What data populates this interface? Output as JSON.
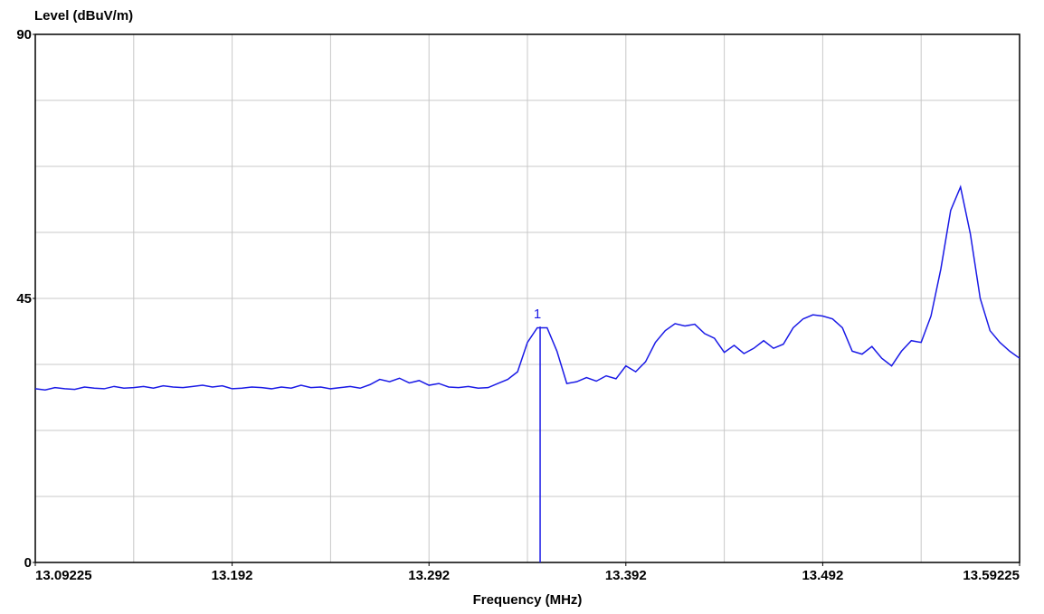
{
  "chart_data": {
    "type": "line",
    "y_label": "Level (dBuV/m)",
    "x_label": "Frequency (MHz)",
    "xlim": [
      13.09225,
      13.59225
    ],
    "ylim": [
      0,
      90
    ],
    "xticks": [
      13.09225,
      {
        "value": 13.19225,
        "label": "13.192"
      },
      {
        "value": 13.29225,
        "label": "13.292"
      },
      {
        "value": 13.39225,
        "label": "13.392"
      },
      {
        "value": 13.49225,
        "label": "13.492"
      },
      13.59225
    ],
    "yticks": [
      0,
      45,
      90
    ],
    "xgrid": [
      13.14225,
      13.19225,
      13.24225,
      13.29225,
      13.34225,
      13.39225,
      13.44225,
      13.49225,
      13.54225
    ],
    "ygrid": [
      11.25,
      22.5,
      33.75,
      45,
      56.25,
      67.5,
      78.75
    ],
    "grid": true,
    "series": [
      {
        "color": "#1a1ae6",
        "x": [
          13.09225,
          13.09725,
          13.10225,
          13.10725,
          13.11225,
          13.11725,
          13.12225,
          13.12725,
          13.13225,
          13.13725,
          13.14225,
          13.14725,
          13.15225,
          13.15725,
          13.16225,
          13.16725,
          13.17225,
          13.17725,
          13.18225,
          13.18725,
          13.19225,
          13.19725,
          13.20225,
          13.20725,
          13.21225,
          13.21725,
          13.22225,
          13.22725,
          13.23225,
          13.23725,
          13.24225,
          13.24725,
          13.25225,
          13.25725,
          13.26225,
          13.26725,
          13.27225,
          13.27725,
          13.28225,
          13.28725,
          13.29225,
          13.29725,
          13.30225,
          13.30725,
          13.31225,
          13.31725,
          13.32225,
          13.32725,
          13.33225,
          13.33725,
          13.34225,
          13.34725,
          13.35225,
          13.35725,
          13.36225,
          13.36725,
          13.37225,
          13.37725,
          13.38225,
          13.38725,
          13.39225,
          13.39725,
          13.40225,
          13.40725,
          13.41225,
          13.41725,
          13.42225,
          13.42725,
          13.43225,
          13.43725,
          13.44225,
          13.44725,
          13.45225,
          13.45725,
          13.46225,
          13.46725,
          13.47225,
          13.47725,
          13.48225,
          13.48725,
          13.49225,
          13.49725,
          13.50225,
          13.50725,
          13.51225,
          13.51725,
          13.52225,
          13.52725,
          13.53225,
          13.53725,
          13.54225,
          13.54725,
          13.55225,
          13.55725,
          13.56225,
          13.56725,
          13.57225,
          13.57725,
          13.58225,
          13.58725,
          13.59225
        ],
        "values": [
          29.6,
          29.4,
          29.8,
          29.6,
          29.5,
          29.9,
          29.7,
          29.6,
          30.0,
          29.7,
          29.8,
          30.0,
          29.7,
          30.1,
          29.9,
          29.8,
          30.0,
          30.2,
          29.9,
          30.1,
          29.6,
          29.7,
          29.9,
          29.8,
          29.6,
          29.9,
          29.7,
          30.2,
          29.8,
          29.9,
          29.6,
          29.8,
          30.0,
          29.7,
          30.3,
          31.2,
          30.8,
          31.4,
          30.6,
          31.0,
          30.2,
          30.5,
          29.9,
          29.8,
          30.0,
          29.7,
          29.8,
          30.5,
          31.2,
          32.5,
          37.5,
          40.0,
          40.0,
          36.0,
          30.5,
          30.8,
          31.5,
          30.9,
          31.8,
          31.3,
          33.5,
          32.5,
          34.2,
          37.5,
          39.5,
          40.7,
          40.3,
          40.6,
          39.0,
          38.2,
          35.8,
          37.0,
          35.6,
          36.5,
          37.8,
          36.5,
          37.2,
          40.0,
          41.5,
          42.2,
          42.0,
          41.5,
          40.0,
          36.0,
          35.5,
          36.8,
          34.8,
          33.5,
          36.0,
          37.8,
          37.5,
          42.0,
          50.0,
          60.0,
          64.0,
          56.0,
          45.0,
          39.5,
          37.5,
          36.0,
          34.8
        ]
      }
    ],
    "annotations": [
      {
        "label": "1",
        "x": 13.3487,
        "y": 40.2
      }
    ]
  }
}
